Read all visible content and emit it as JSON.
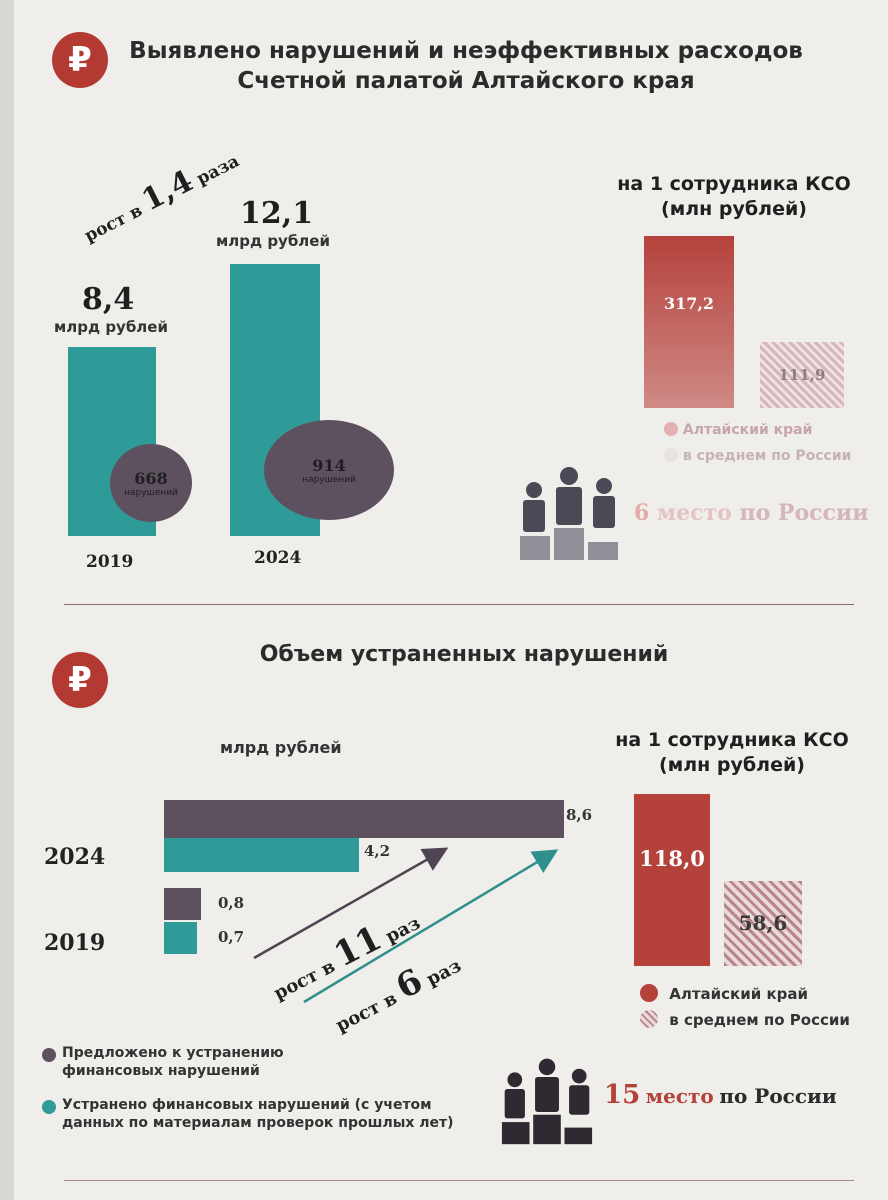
{
  "section1": {
    "title_line1": "Выявлено нарушений и неэффективных расходов",
    "title_line2": "Счетной палатой Алтайского края",
    "growth_prefix": "рост в ",
    "growth_value": "1,4",
    "growth_suffix": " раза",
    "per_employee_line1": "на 1 сотрудника КСО",
    "per_employee_line2": "(млн рублей)",
    "rank_number": "6",
    "rank_word": "место",
    "rank_suffix": "по России"
  },
  "section2": {
    "title": "Объем устраненных нарушений",
    "unit": "млрд рублей",
    "growth1_prefix": "рост в ",
    "growth1_value": "11",
    "growth1_suffix": " раз",
    "growth2_prefix": "рост в ",
    "growth2_value": "6",
    "growth2_suffix": " раз",
    "per_employee_line1": "на 1 сотрудника КСО",
    "per_employee_line2": "(млн рублей)",
    "legend_proposed": "Предложено к устранению финансовых нарушений",
    "legend_eliminated": "Устранено финансовых нарушений (с учетом данных по материалам проверок прошлых лет)",
    "rank_number": "15",
    "rank_word": "место",
    "rank_suffix": "по России"
  },
  "colors": {
    "teal": "#2f9b98",
    "purple": "#5d5160",
    "red": "#b5413b",
    "hatch": "#c9a3a6"
  },
  "icons": {
    "ruble": "₽",
    "people": "people-podium-icon"
  },
  "chart_data": [
    {
      "type": "bar",
      "categories": [
        "2019",
        "2024"
      ],
      "series": [
        {
          "values": [
            8.4,
            12.1
          ],
          "value_labels": [
            "8,4",
            "12,1"
          ],
          "unit": "млрд рублей"
        },
        {
          "values": [
            668,
            914
          ],
          "value_labels": [
            "668",
            "914"
          ],
          "unit": "нарушений"
        }
      ]
    },
    {
      "type": "bar",
      "categories": [
        "Алтайский край",
        "в среднем по России"
      ],
      "values": [
        317.2,
        111.9
      ],
      "value_labels": [
        "317,2",
        "111,9"
      ],
      "legend": [
        "Алтайский край",
        "в среднем по России"
      ]
    },
    {
      "type": "bar",
      "orientation": "horizontal",
      "categories": [
        "2024",
        "2019"
      ],
      "series": [
        {
          "name": "Предложено к устранению финансовых нарушений",
          "values": [
            8.6,
            0.8
          ],
          "value_labels": [
            "8,6",
            "0,8"
          ]
        },
        {
          "name": "Устранено финансовых нарушений (с учетом данных по материалам проверок прошлых лет)",
          "values": [
            4.2,
            0.7
          ],
          "value_labels": [
            "4,2",
            "0,7"
          ]
        }
      ]
    },
    {
      "type": "bar",
      "categories": [
        "Алтайский край",
        "в среднем по России"
      ],
      "values": [
        118.0,
        58.6
      ],
      "value_labels": [
        "118,0",
        "58,6"
      ],
      "legend": [
        "Алтайский край",
        "в среднем по России"
      ]
    }
  ]
}
